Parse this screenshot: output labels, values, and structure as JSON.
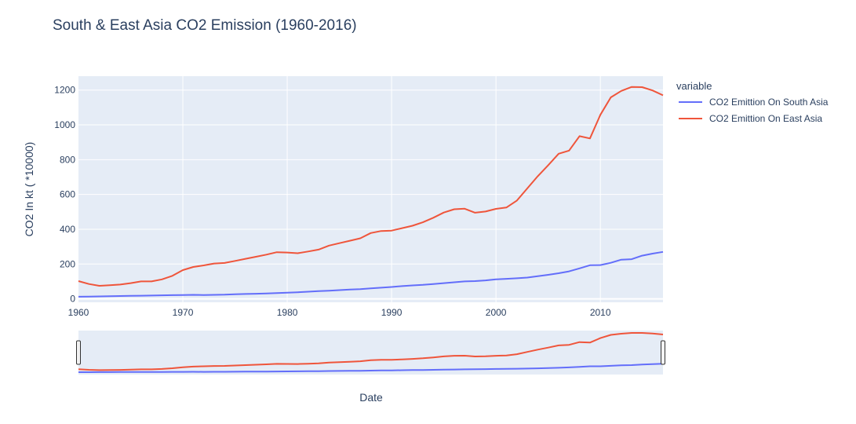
{
  "chart_data": {
    "type": "line",
    "title": "South & East Asia CO2 Emission (1960-2016)",
    "xlabel": "Date",
    "ylabel": "CO2 In kt ( *10000)",
    "xlim": [
      1960,
      2016
    ],
    "ylim": [
      -20,
      1280
    ],
    "x_ticks": [
      1960,
      1970,
      1980,
      1990,
      2000,
      2010
    ],
    "y_ticks": [
      0,
      200,
      400,
      600,
      800,
      1000,
      1200
    ],
    "legend_title": "variable",
    "legend_position": "right",
    "range_slider": true,
    "x": [
      1960,
      1961,
      1962,
      1963,
      1964,
      1965,
      1966,
      1967,
      1968,
      1969,
      1970,
      1971,
      1972,
      1973,
      1974,
      1975,
      1976,
      1977,
      1978,
      1979,
      1980,
      1981,
      1982,
      1983,
      1984,
      1985,
      1986,
      1987,
      1988,
      1989,
      1990,
      1991,
      1992,
      1993,
      1994,
      1995,
      1996,
      1997,
      1998,
      1999,
      2000,
      2001,
      2002,
      2003,
      2004,
      2005,
      2006,
      2007,
      2008,
      2009,
      2010,
      2011,
      2012,
      2013,
      2014,
      2015,
      2016
    ],
    "series": [
      {
        "name": "CO2 Emittion On South Asia",
        "color": "#636efa",
        "values": [
          12,
          13,
          14,
          15,
          16,
          17,
          18,
          19,
          20,
          21,
          22,
          23,
          22,
          23,
          24,
          26,
          28,
          29,
          31,
          33,
          35,
          38,
          41,
          44,
          47,
          50,
          53,
          56,
          60,
          64,
          68,
          73,
          77,
          80,
          85,
          90,
          95,
          100,
          102,
          106,
          112,
          115,
          118,
          122,
          130,
          138,
          147,
          158,
          175,
          193,
          194,
          207,
          225,
          228,
          248,
          260,
          270
        ]
      },
      {
        "name": "CO2 Emittion On East Asia",
        "color": "#ef553b",
        "values": [
          102,
          85,
          75,
          78,
          82,
          90,
          100,
          100,
          112,
          132,
          165,
          183,
          192,
          203,
          206,
          218,
          230,
          242,
          254,
          268,
          266,
          262,
          272,
          283,
          306,
          320,
          334,
          348,
          378,
          390,
          392,
          406,
          420,
          440,
          466,
          496,
          515,
          518,
          495,
          502,
          517,
          525,
          565,
          635,
          705,
          768,
          834,
          852,
          935,
          922,
          1058,
          1158,
          1195,
          1218,
          1217,
          1198,
          1170
        ]
      }
    ]
  }
}
